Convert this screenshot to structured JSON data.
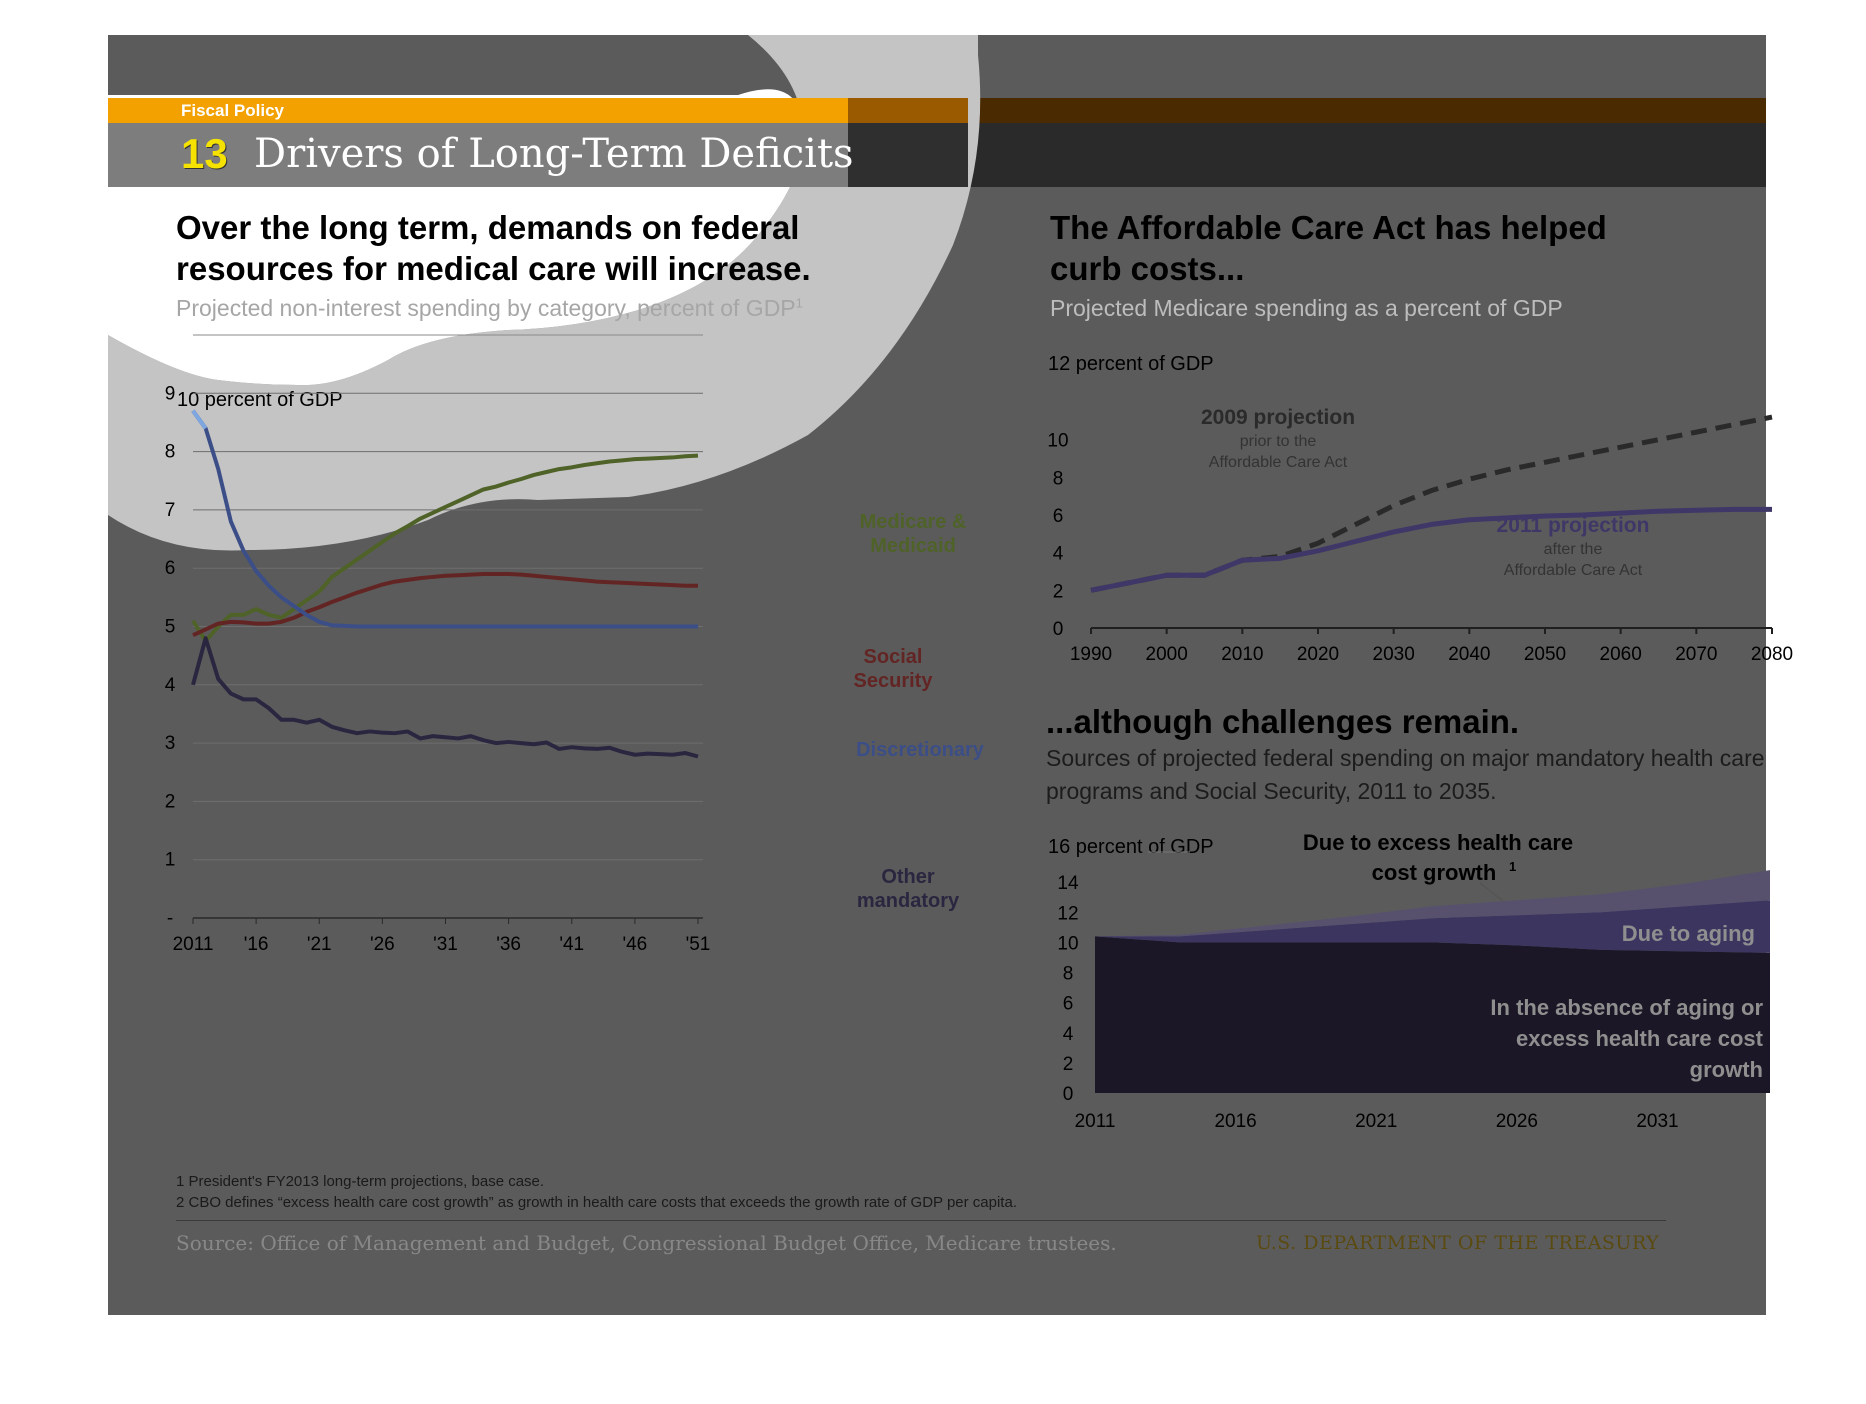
{
  "header": {
    "series_label": "Fiscal Policy",
    "slide_number": "13",
    "title": "Drivers of Long-Term Deficits"
  },
  "left_panel": {
    "headline_line1": "Over the long term, demands on federal",
    "headline_line2": "resources for medical care will increase.",
    "subhead": "Projected non-interest spending by category, percent of GDP",
    "subhead_sup": "1"
  },
  "right_top_panel": {
    "headline_line1": "The Affordable Care Act has helped",
    "headline_line2": "curb costs...",
    "subhead": "Projected Medicare spending as a percent of GDP"
  },
  "right_bottom_panel": {
    "headline": "...although challenges remain.",
    "subhead_line1": "Sources of projected federal spending on major mandatory health care",
    "subhead_line2": "programs and Social Security, 2011 to 2035."
  },
  "footnotes": {
    "note1": "1 President's FY2013 long-term projections, base case.",
    "note2": "2 CBO defines “excess health care cost growth” as growth in health care costs that exceeds the growth rate of GDP per capita."
  },
  "source": "Source: Office of Management and Budget, Congressional Budget Office, Medicare trustees.",
  "agency": "U.S. DEPARTMENT OF THE TREASURY",
  "colors": {
    "orange": "#f2a100",
    "medicare": "#4f6228",
    "social_security": "#632523",
    "discretionary": "#3b4e87",
    "other_mandatory": "#2b2640",
    "projection_2011": "#3f3767",
    "projection_2009": "#2a2a2a",
    "area_base": "#1b1726",
    "area_aging": "#3c3560",
    "area_excess": "#57516e"
  },
  "chart_data": [
    {
      "type": "line",
      "y_axis_title": "10 percent of GDP",
      "ylim": [
        0,
        10
      ],
      "y_ticks": [
        "-",
        "1",
        "2",
        "3",
        "4",
        "5",
        "6",
        "7",
        "8",
        "9"
      ],
      "x_tick_labels": [
        "2011",
        "'16",
        "'21",
        "'26",
        "'31",
        "'36",
        "'41",
        "'46",
        "'51"
      ],
      "x": [
        2011,
        2012,
        2013,
        2014,
        2015,
        2016,
        2017,
        2018,
        2019,
        2020,
        2021,
        2022,
        2023,
        2024,
        2025,
        2026,
        2027,
        2028,
        2029,
        2030,
        2031,
        2032,
        2033,
        2034,
        2035,
        2036,
        2037,
        2038,
        2039,
        2040,
        2041,
        2042,
        2043,
        2044,
        2045,
        2046,
        2047,
        2048,
        2049,
        2050,
        2051
      ],
      "series": [
        {
          "name": "Medicare & Medicaid",
          "label_lines": [
            "Medicare &",
            "Medicaid"
          ],
          "color_key": "medicare",
          "values": [
            5.1,
            4.75,
            5.0,
            5.2,
            5.2,
            5.3,
            5.2,
            5.15,
            5.3,
            5.45,
            5.6,
            5.85,
            6.0,
            6.15,
            6.3,
            6.45,
            6.6,
            6.72,
            6.85,
            6.95,
            7.05,
            7.15,
            7.25,
            7.35,
            7.4,
            7.47,
            7.53,
            7.6,
            7.65,
            7.7,
            7.73,
            7.77,
            7.8,
            7.83,
            7.85,
            7.87,
            7.88,
            7.89,
            7.9,
            7.92,
            7.93
          ]
        },
        {
          "name": "Social Security",
          "label_lines": [
            "Social",
            "Security"
          ],
          "color_key": "social_security",
          "values": [
            4.85,
            4.95,
            5.05,
            5.08,
            5.07,
            5.05,
            5.05,
            5.08,
            5.15,
            5.25,
            5.33,
            5.42,
            5.5,
            5.58,
            5.65,
            5.72,
            5.77,
            5.8,
            5.83,
            5.85,
            5.87,
            5.88,
            5.89,
            5.9,
            5.9,
            5.9,
            5.89,
            5.87,
            5.85,
            5.83,
            5.81,
            5.79,
            5.77,
            5.76,
            5.75,
            5.74,
            5.73,
            5.72,
            5.71,
            5.7,
            5.7
          ]
        },
        {
          "name": "Discretionary",
          "label_lines": [
            "Discretionary"
          ],
          "color_key": "discretionary",
          "values": [
            8.7,
            8.4,
            7.7,
            6.8,
            6.3,
            5.95,
            5.7,
            5.5,
            5.35,
            5.2,
            5.08,
            5.02,
            5.01,
            5.0,
            5.0,
            5.0,
            5.0,
            5.0,
            5.0,
            5.0,
            5.0,
            5.0,
            5.0,
            5.0,
            5.0,
            5.0,
            5.0,
            5.0,
            5.0,
            5.0,
            5.0,
            5.0,
            5.0,
            5.0,
            5.0,
            5.0,
            5.0,
            5.0,
            5.0,
            5.0,
            5.0
          ]
        },
        {
          "name": "Other mandatory",
          "label_lines": [
            "Other",
            "mandatory"
          ],
          "color_key": "other_mandatory",
          "values": [
            4.0,
            4.8,
            4.1,
            3.85,
            3.75,
            3.75,
            3.6,
            3.4,
            3.4,
            3.35,
            3.4,
            3.28,
            3.22,
            3.17,
            3.2,
            3.18,
            3.17,
            3.2,
            3.08,
            3.12,
            3.1,
            3.08,
            3.12,
            3.05,
            3.0,
            3.02,
            3.0,
            2.98,
            3.01,
            2.9,
            2.93,
            2.91,
            2.9,
            2.92,
            2.85,
            2.8,
            2.82,
            2.81,
            2.8,
            2.83,
            2.77
          ]
        }
      ]
    },
    {
      "type": "line",
      "y_axis_title": "12 percent of GDP",
      "ylim": [
        0,
        12
      ],
      "y_ticks": [
        "0",
        "2",
        "4",
        "6",
        "8",
        "10"
      ],
      "x_tick_labels": [
        "1990",
        "2000",
        "2010",
        "2020",
        "2030",
        "2040",
        "2050",
        "2060",
        "2070",
        "2080"
      ],
      "series": [
        {
          "name": "2009 projection",
          "label_sub_lines": [
            "prior to the",
            "Affordable Care Act"
          ],
          "color_key": "projection_2009",
          "dashed": true,
          "x": [
            1990,
            1995,
            2000,
            2005,
            2010,
            2015,
            2020,
            2025,
            2030,
            2035,
            2040,
            2045,
            2050,
            2055,
            2060,
            2065,
            2070,
            2075,
            2080
          ],
          "values": [
            2.0,
            2.4,
            2.8,
            2.8,
            3.6,
            3.8,
            4.5,
            5.5,
            6.5,
            7.3,
            7.9,
            8.4,
            8.8,
            9.2,
            9.6,
            10.0,
            10.4,
            10.8,
            11.2
          ]
        },
        {
          "name": "2011 projection",
          "label_sub_lines": [
            "after the",
            "Affordable Care Act"
          ],
          "color_key": "projection_2011",
          "dashed": false,
          "x": [
            1990,
            1995,
            2000,
            2005,
            2010,
            2015,
            2020,
            2025,
            2030,
            2035,
            2040,
            2045,
            2050,
            2055,
            2060,
            2065,
            2070,
            2075,
            2080
          ],
          "values": [
            2.0,
            2.4,
            2.8,
            2.8,
            3.6,
            3.7,
            4.1,
            4.6,
            5.1,
            5.5,
            5.75,
            5.85,
            5.95,
            6.0,
            6.1,
            6.2,
            6.25,
            6.3,
            6.3
          ]
        }
      ]
    },
    {
      "type": "area",
      "y_axis_title": "16 percent of GDP",
      "ylim": [
        0,
        16
      ],
      "y_ticks": [
        "0",
        "2",
        "4",
        "6",
        "8",
        "10",
        "12",
        "14"
      ],
      "x_tick_labels": [
        "2011",
        "2016",
        "2021",
        "2026",
        "2031"
      ],
      "x": [
        2011,
        2014,
        2017,
        2020,
        2023,
        2026,
        2029,
        2032,
        2035
      ],
      "series": [
        {
          "name": "In the absence of aging or excess health care cost growth",
          "label_lines": [
            "In the absence of aging or",
            "excess health care cost",
            "growth"
          ],
          "color_key": "area_base",
          "values": [
            10.4,
            10.0,
            10.0,
            10.0,
            10.0,
            9.8,
            9.5,
            9.4,
            9.3
          ]
        },
        {
          "name": "Due to aging",
          "label_lines": [
            "Due to aging"
          ],
          "color_key": "area_aging",
          "values": [
            0.0,
            0.4,
            0.8,
            1.2,
            1.6,
            2.0,
            2.5,
            3.0,
            3.5
          ]
        },
        {
          "name": "Due to excess health care cost growth",
          "label_lines": [
            "Due to excess  health care",
            "cost growth"
          ],
          "label_sup": "1",
          "color_key": "area_excess",
          "values": [
            0.0,
            0.1,
            0.3,
            0.5,
            0.8,
            1.0,
            1.2,
            1.5,
            2.0
          ]
        }
      ]
    }
  ]
}
